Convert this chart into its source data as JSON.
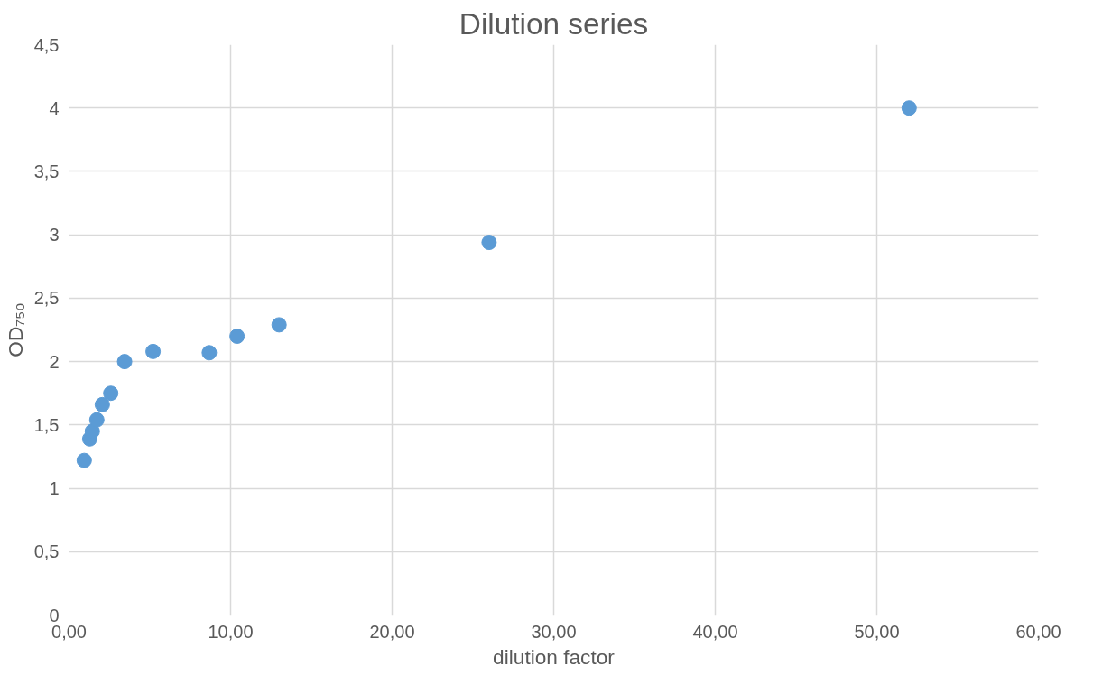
{
  "chart_data": {
    "type": "scatter",
    "title": "Dilution series",
    "xlabel": "dilution factor",
    "ylabel": "OD₇₅₀",
    "x": [
      0.94,
      1.28,
      1.44,
      1.72,
      2.06,
      2.58,
      3.44,
      5.2,
      8.68,
      10.4,
      13.0,
      26.0,
      52.0
    ],
    "series": [
      {
        "color": "#5b9bd5",
        "values": [
          1.22,
          1.39,
          1.45,
          1.54,
          1.66,
          1.75,
          2.0,
          2.08,
          2.07,
          2.2,
          2.29,
          2.94,
          4.0
        ]
      }
    ],
    "xlim": [
      0,
      60
    ],
    "ylim": [
      0,
      4.5
    ],
    "xticks": [
      {
        "value": 0,
        "label": "0,00"
      },
      {
        "value": 10,
        "label": "10,00"
      },
      {
        "value": 20,
        "label": "20,00"
      },
      {
        "value": 30,
        "label": "30,00"
      },
      {
        "value": 40,
        "label": "40,00"
      },
      {
        "value": 50,
        "label": "50,00"
      },
      {
        "value": 60,
        "label": "60,00"
      }
    ],
    "yticks": [
      0,
      {
        "value": 0.5,
        "label": "0,5"
      },
      1,
      {
        "value": 1.5,
        "label": "1,5"
      },
      2,
      {
        "value": 2.5,
        "label": "2,5"
      },
      3,
      {
        "value": 3.5,
        "label": "3,5"
      },
      4,
      {
        "value": 4.5,
        "label": "4,5"
      }
    ],
    "grid": true,
    "marker": "circle"
  }
}
